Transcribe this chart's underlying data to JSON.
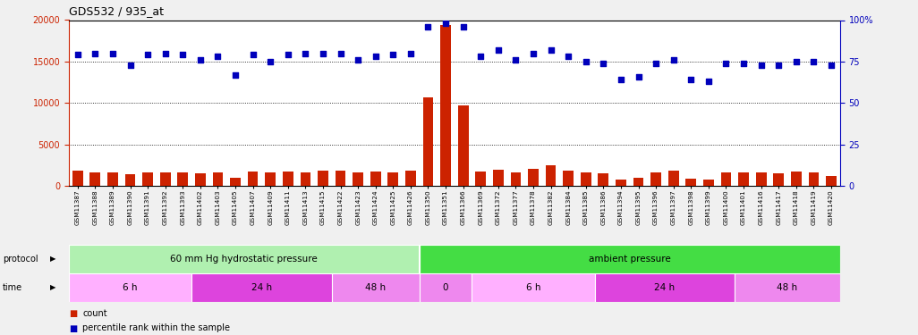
{
  "title": "GDS532 / 935_at",
  "samples": [
    "GSM11387",
    "GSM11388",
    "GSM11389",
    "GSM11390",
    "GSM11391",
    "GSM11392",
    "GSM11393",
    "GSM11402",
    "GSM11403",
    "GSM11405",
    "GSM11407",
    "GSM11409",
    "GSM11411",
    "GSM11413",
    "GSM11415",
    "GSM11422",
    "GSM11423",
    "GSM11424",
    "GSM11425",
    "GSM11426",
    "GSM11350",
    "GSM11351",
    "GSM11366",
    "GSM11369",
    "GSM11372",
    "GSM11377",
    "GSM11378",
    "GSM11382",
    "GSM11384",
    "GSM11385",
    "GSM11386",
    "GSM11394",
    "GSM11395",
    "GSM11396",
    "GSM11397",
    "GSM11398",
    "GSM11399",
    "GSM11400",
    "GSM11401",
    "GSM11416",
    "GSM11417",
    "GSM11418",
    "GSM11419",
    "GSM11420"
  ],
  "counts": [
    1800,
    1600,
    1600,
    1400,
    1600,
    1600,
    1600,
    1500,
    1600,
    1000,
    1700,
    1600,
    1700,
    1600,
    1800,
    1800,
    1600,
    1700,
    1600,
    1800,
    10700,
    19400,
    9700,
    1700,
    2000,
    1600,
    2100,
    2500,
    1800,
    1600,
    1500,
    800,
    1000,
    1600,
    1800,
    900,
    800,
    1600,
    1600,
    1600,
    1500,
    1700,
    1600,
    1200
  ],
  "percentile": [
    79,
    80,
    80,
    73,
    79,
    80,
    79,
    76,
    78,
    67,
    79,
    75,
    79,
    80,
    80,
    80,
    76,
    78,
    79,
    80,
    96,
    98,
    96,
    78,
    82,
    76,
    80,
    82,
    78,
    75,
    74,
    64,
    66,
    74,
    76,
    64,
    63,
    74,
    74,
    73,
    73,
    75,
    75,
    73
  ],
  "ylim_left": [
    0,
    20000
  ],
  "ylim_right": [
    0,
    100
  ],
  "yticks_left": [
    0,
    5000,
    10000,
    15000,
    20000
  ],
  "yticks_right": [
    0,
    25,
    50,
    75,
    100
  ],
  "protocol_groups": [
    {
      "label": "60 mm Hg hydrostatic pressure",
      "color": "#B0F0B0",
      "start": 0,
      "end": 20
    },
    {
      "label": "ambient pressure",
      "color": "#44DD44",
      "start": 20,
      "end": 44
    }
  ],
  "time_groups": [
    {
      "label": "6 h",
      "color": "#FFB0FF",
      "start": 0,
      "end": 7
    },
    {
      "label": "24 h",
      "color": "#DD44DD",
      "start": 7,
      "end": 15
    },
    {
      "label": "48 h",
      "color": "#EE88EE",
      "start": 15,
      "end": 20
    },
    {
      "label": "0",
      "color": "#EE88EE",
      "start": 20,
      "end": 23
    },
    {
      "label": "6 h",
      "color": "#FFB0FF",
      "start": 23,
      "end": 30
    },
    {
      "label": "24 h",
      "color": "#DD44DD",
      "start": 30,
      "end": 38
    },
    {
      "label": "48 h",
      "color": "#EE88EE",
      "start": 38,
      "end": 44
    }
  ],
  "bar_color": "#CC2200",
  "dot_color": "#0000BB",
  "fig_bg": "#F0F0F0",
  "plot_bg": "#FFFFFF",
  "left_axis_color": "#CC2200",
  "right_axis_color": "#0000BB"
}
